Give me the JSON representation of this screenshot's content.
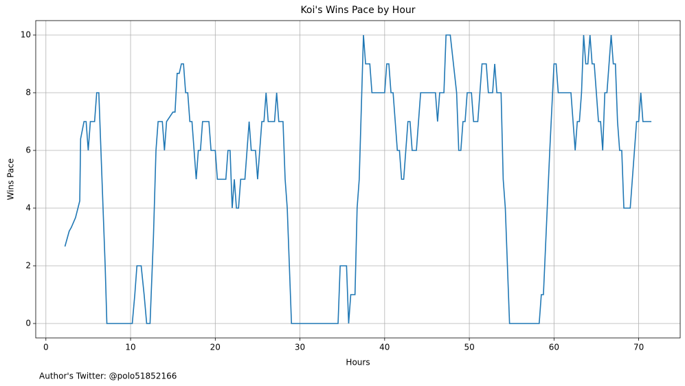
{
  "chart_data": {
    "type": "line",
    "title": "Koi's Wins Pace by Hour",
    "xlabel": "Hours",
    "ylabel": "Wins Pace",
    "footnote": "Author's Twitter: @polo51852166",
    "color": "#1f77b4",
    "grid": true,
    "x": [
      2.25,
      2.75,
      3.0,
      3.5,
      4.0,
      4.1,
      4.5,
      4.75,
      5.0,
      5.25,
      5.75,
      6.0,
      6.25,
      6.5,
      7.0,
      7.2,
      10.2,
      10.5,
      10.75,
      11.25,
      11.6,
      11.9,
      12.3,
      12.7,
      13.0,
      13.25,
      13.75,
      14.0,
      14.25,
      15.0,
      15.25,
      15.5,
      15.75,
      16.0,
      16.25,
      16.5,
      16.75,
      17.0,
      17.25,
      17.5,
      17.75,
      18.0,
      18.25,
      18.5,
      19.25,
      19.5,
      20.0,
      20.25,
      21.25,
      21.5,
      21.75,
      22.0,
      22.25,
      22.5,
      22.75,
      23.0,
      23.5,
      24.0,
      24.25,
      24.75,
      25.0,
      25.25,
      25.5,
      25.75,
      26.0,
      26.25,
      27.0,
      27.25,
      27.5,
      28.0,
      28.25,
      28.5,
      29.0,
      34.5,
      34.75,
      35.5,
      35.75,
      36.0,
      36.5,
      36.75,
      37.0,
      37.5,
      37.75,
      38.25,
      38.5,
      40.0,
      40.25,
      40.5,
      40.75,
      41.0,
      41.5,
      41.75,
      42.0,
      42.25,
      42.75,
      43.0,
      43.25,
      43.75,
      44.25,
      46.0,
      46.25,
      46.5,
      47.0,
      47.25,
      47.75,
      48.5,
      48.75,
      49.0,
      49.25,
      49.5,
      49.75,
      50.25,
      50.5,
      51.0,
      51.5,
      52.0,
      52.25,
      52.75,
      53.0,
      53.25,
      53.75,
      54.0,
      54.25,
      54.75,
      58.25,
      58.5,
      58.75,
      59.5,
      60.0,
      60.25,
      60.5,
      62.0,
      62.5,
      62.75,
      63.0,
      63.25,
      63.5,
      63.75,
      64.0,
      64.25,
      64.5,
      64.75,
      65.25,
      65.5,
      65.75,
      66.0,
      66.25,
      66.75,
      67.0,
      67.25,
      67.5,
      67.75,
      68.0,
      68.25,
      69.0,
      69.75,
      70.0,
      70.25,
      70.5,
      71.5
    ],
    "values": [
      2.67,
      3.2,
      3.33,
      3.67,
      4.25,
      6.4,
      7,
      7,
      6,
      7,
      7,
      8,
      8,
      6,
      2,
      0,
      0,
      1,
      2,
      2,
      1,
      0,
      0,
      3,
      6,
      7,
      7,
      6,
      7,
      7.33,
      7.33,
      8.67,
      8.67,
      9,
      9,
      8,
      8,
      7,
      7,
      6,
      5,
      6,
      6,
      7,
      7,
      6,
      6,
      5,
      5,
      6,
      6,
      4,
      5,
      4,
      4,
      5,
      5,
      7,
      6,
      6,
      5,
      6,
      7,
      7,
      8,
      7,
      7,
      8,
      7,
      7,
      5,
      4,
      0,
      0,
      2,
      2,
      0,
      1,
      1,
      4,
      5,
      10,
      9,
      9,
      8,
      8,
      9,
      9,
      8,
      8,
      6,
      6,
      5,
      5,
      7,
      7,
      6,
      6,
      8,
      8,
      7,
      8,
      8,
      10,
      10,
      8,
      6,
      6,
      7,
      7,
      8,
      8,
      7,
      7,
      9,
      9,
      8,
      8,
      9,
      8,
      8,
      5,
      4,
      0,
      0,
      1,
      1,
      6,
      9,
      9,
      8,
      8,
      6,
      7,
      7,
      8,
      10,
      9,
      9,
      10,
      9,
      9,
      7,
      7,
      6,
      8,
      8,
      10,
      9,
      9,
      7,
      6,
      6,
      4,
      4,
      7,
      7,
      8,
      7,
      7
    ],
    "xlim": [
      -1.2,
      74.9
    ],
    "ylim": [
      -0.5,
      10.5
    ],
    "xticks": [
      0,
      10,
      20,
      30,
      40,
      50,
      60,
      70
    ],
    "yticks": [
      0,
      2,
      4,
      6,
      8,
      10
    ]
  }
}
